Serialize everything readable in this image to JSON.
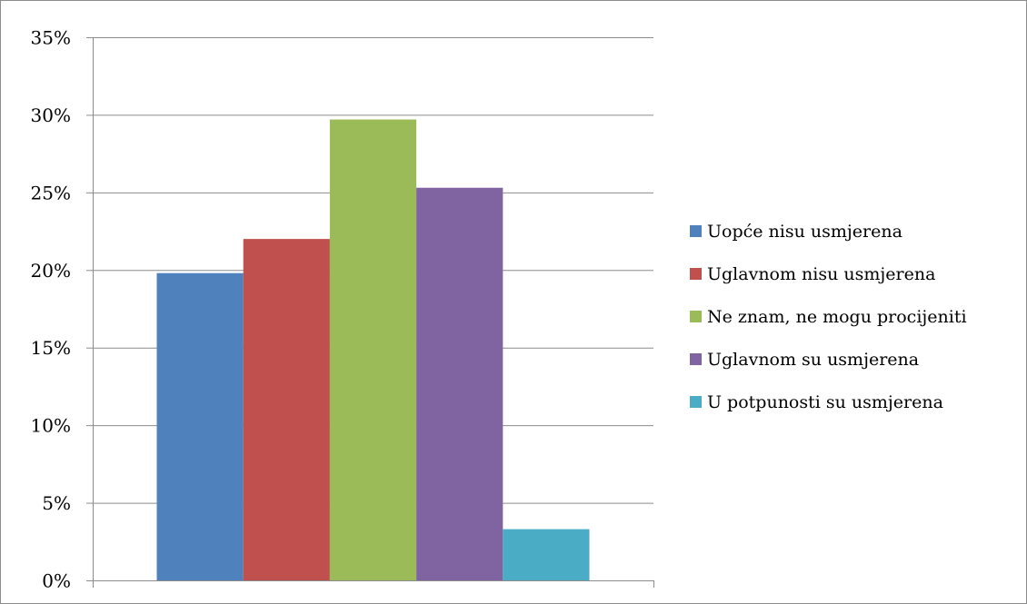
{
  "chart_data": {
    "type": "bar",
    "categories": [
      ""
    ],
    "series": [
      {
        "name": "Uopće nisu usmjerena",
        "values": [
          19.8
        ],
        "color": "#4F81BD"
      },
      {
        "name": "Uglavnom nisu usmjerena",
        "values": [
          22.0
        ],
        "color": "#C0504D"
      },
      {
        "name": "Ne znam, ne mogu procijeniti",
        "values": [
          29.7
        ],
        "color": "#9BBB59"
      },
      {
        "name": "Uglavnom su usmjerena",
        "values": [
          25.3
        ],
        "color": "#8064A2"
      },
      {
        "name": "U potpunosti su usmjerena",
        "values": [
          3.3
        ],
        "color": "#4BACC6"
      }
    ],
    "ylim": [
      0,
      35
    ],
    "yticks": [
      0,
      5,
      10,
      15,
      20,
      25,
      30,
      35
    ],
    "ytick_labels": [
      "0%",
      "5%",
      "10%",
      "15%",
      "20%",
      "25%",
      "30%",
      "35%"
    ],
    "grid": true,
    "legend_position": "right",
    "title": "",
    "xlabel": "",
    "ylabel": ""
  }
}
